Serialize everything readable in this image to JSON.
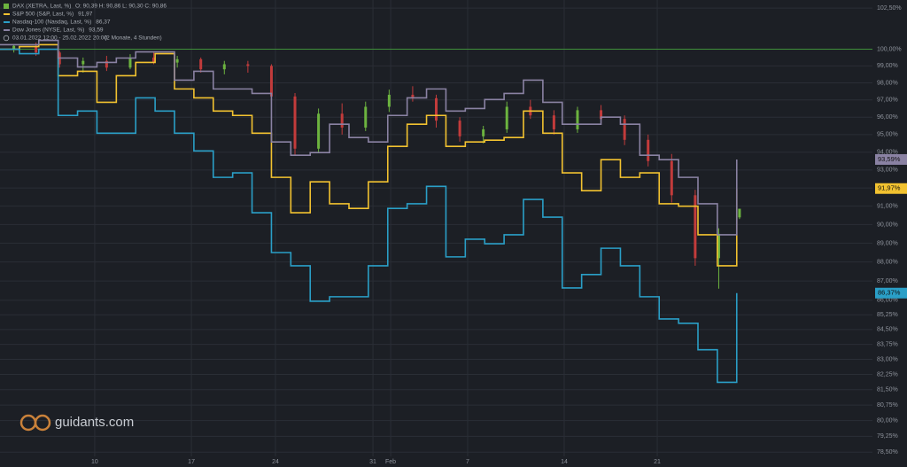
{
  "chart_data": {
    "type": "line",
    "y_scale": "log",
    "date_range": "03.01.2022 12:00 - 25.02.2022 20:00",
    "period": "(2 Monate, 4 Stunden)",
    "watermark": "guidants.com",
    "xlim": [
      0,
      63
    ],
    "xticks": [
      {
        "value": 6.84,
        "label": "10"
      },
      {
        "value": 13.82,
        "label": "17"
      },
      {
        "value": 19.89,
        "label": "24"
      },
      {
        "value": 26.93,
        "label": "31"
      },
      {
        "value": 28.21,
        "label": "Feb"
      },
      {
        "value": 33.77,
        "label": "7"
      },
      {
        "value": 40.74,
        "label": "14"
      },
      {
        "value": 47.46,
        "label": "21"
      }
    ],
    "ylim": [
      78.3,
      103.0
    ],
    "yticks": [
      {
        "value": 102.5,
        "label": "102,50%"
      },
      {
        "value": 100,
        "label": "100,00%"
      },
      {
        "value": 99,
        "label": "99,00%"
      },
      {
        "value": 98,
        "label": "98,00%"
      },
      {
        "value": 97,
        "label": "97,00%"
      },
      {
        "value": 96,
        "label": "96,00%"
      },
      {
        "value": 95,
        "label": "95,00%"
      },
      {
        "value": 94,
        "label": "94,00%"
      },
      {
        "value": 93,
        "label": "93,00%"
      },
      {
        "value": 92,
        "label": "92,00%"
      },
      {
        "value": 91,
        "label": "91,00%"
      },
      {
        "value": 90,
        "label": "90,00%"
      },
      {
        "value": 89,
        "label": "89,00%"
      },
      {
        "value": 88,
        "label": "88,00%"
      },
      {
        "value": 87,
        "label": "87,00%"
      },
      {
        "value": 86,
        "label": "86,00%"
      },
      {
        "value": 85.25,
        "label": "85,25%"
      },
      {
        "value": 84.5,
        "label": "84,50%"
      },
      {
        "value": 83.75,
        "label": "83,75%"
      },
      {
        "value": 83,
        "label": "83,00%"
      },
      {
        "value": 82.25,
        "label": "82,25%"
      },
      {
        "value": 81.5,
        "label": "81,50%"
      },
      {
        "value": 80.75,
        "label": "80,75%"
      },
      {
        "value": 80,
        "label": "80,00%"
      },
      {
        "value": 79.25,
        "label": "79,25%"
      },
      {
        "value": 78.5,
        "label": "78,50%"
      }
    ],
    "grid": true,
    "reference_line": {
      "value": 100,
      "color": "#3f8f3a"
    },
    "candles": {
      "name": "DAX (XETRA, Last, %)",
      "ohlc_label": "O: 90,39  H: 90,86  L: 90,30  C: 90,86",
      "up_color": "#6cb33f",
      "down_color": "#c23b3b",
      "x": [
        1.0,
        2.6,
        4.3,
        6.0,
        7.7,
        9.4,
        11.1,
        12.8,
        14.5,
        16.2,
        17.9,
        19.6,
        21.3,
        23.0,
        24.7,
        26.4,
        28.1,
        29.8,
        31.5,
        33.2,
        34.9,
        36.6,
        38.3,
        40.0,
        41.7,
        43.4,
        45.1,
        46.8,
        48.5,
        50.2,
        51.9,
        53.4
      ],
      "open": [
        100.0,
        100.2,
        99.8,
        99.1,
        99.3,
        98.9,
        99.5,
        99.2,
        99.4,
        98.8,
        99.1,
        99.0,
        97.2,
        94.2,
        96.2,
        95.4,
        96.6,
        97.3,
        97.1,
        95.8,
        94.9,
        95.3,
        96.6,
        96.1,
        95.3,
        96.4,
        95.9,
        94.7,
        93.5,
        91.6,
        88.2,
        90.39
      ],
      "high": [
        100.3,
        100.4,
        99.9,
        99.5,
        99.6,
        99.7,
        99.8,
        99.6,
        99.5,
        99.3,
        99.3,
        99.1,
        97.4,
        96.5,
        96.8,
        96.9,
        97.6,
        97.8,
        97.3,
        96.0,
        95.5,
        96.9,
        97.0,
        96.4,
        96.6,
        96.7,
        96.1,
        95.0,
        93.9,
        91.9,
        89.8,
        90.86
      ],
      "low": [
        99.8,
        99.6,
        98.9,
        98.6,
        98.7,
        98.8,
        99.1,
        98.9,
        98.6,
        98.5,
        98.6,
        96.8,
        93.8,
        94.0,
        95.0,
        95.2,
        96.3,
        96.9,
        95.4,
        94.6,
        94.5,
        95.1,
        95.9,
        95.0,
        95.1,
        95.6,
        94.4,
        93.2,
        91.2,
        87.8,
        86.6,
        90.3
      ],
      "close": [
        100.2,
        99.8,
        99.1,
        99.3,
        98.9,
        99.5,
        99.2,
        99.4,
        98.8,
        99.1,
        99.0,
        97.2,
        94.2,
        96.2,
        95.4,
        96.6,
        97.3,
        97.1,
        95.8,
        94.9,
        95.3,
        96.6,
        96.1,
        95.3,
        96.4,
        95.9,
        94.7,
        93.5,
        91.6,
        88.2,
        89.5,
        90.86
      ]
    },
    "x": [
      0,
      1.4,
      2.8,
      4.2,
      5.6,
      7.0,
      8.4,
      9.8,
      11.2,
      12.6,
      14.0,
      15.4,
      16.8,
      18.2,
      19.6,
      21.0,
      22.4,
      23.8,
      25.2,
      26.6,
      28.0,
      29.4,
      30.8,
      32.2,
      33.6,
      35.0,
      36.4,
      37.8,
      39.2,
      40.6,
      42.0,
      43.4,
      44.8,
      46.2,
      47.6,
      49.0,
      50.4,
      51.8,
      53.2
    ],
    "series": [
      {
        "name": "S&P 500 (S&P, Last, %)",
        "legend_value": "91,97",
        "last_label": "91,97%",
        "color": "#f2c230",
        "values": [
          100.0,
          100.16,
          100.27,
          98.42,
          98.68,
          96.86,
          98.42,
          99.21,
          99.73,
          97.64,
          97.12,
          96.35,
          96.1,
          95.08,
          92.59,
          90.64,
          92.34,
          91.13,
          90.88,
          92.34,
          94.33,
          95.59,
          96.1,
          94.33,
          94.58,
          94.68,
          94.83,
          96.35,
          95.08,
          92.84,
          91.85,
          93.58,
          92.59,
          92.84,
          91.13,
          91.0,
          89.45,
          87.8,
          91.97
        ]
      },
      {
        "name": "Nasdaq-100 (Nasdaq, Last, %)",
        "legend_value": "86,37",
        "last_label": "86,37%",
        "color": "#2a9fc7",
        "values": [
          100.0,
          99.73,
          100.0,
          96.1,
          96.35,
          95.08,
          95.08,
          97.12,
          96.35,
          95.08,
          94.07,
          92.59,
          92.84,
          90.64,
          88.5,
          87.8,
          85.95,
          86.18,
          86.18,
          87.8,
          90.88,
          91.13,
          92.09,
          88.27,
          89.21,
          88.97,
          89.45,
          91.37,
          90.4,
          86.64,
          87.34,
          88.73,
          87.8,
          86.18,
          85.04,
          84.82,
          83.48,
          81.86,
          86.37
        ]
      },
      {
        "name": "Dow Jones (NYSE, Last, %)",
        "legend_value": "93,59",
        "last_label": "93,59%",
        "color": "#8a82a3",
        "values": [
          100.27,
          100.27,
          100.53,
          99.47,
          98.94,
          99.21,
          99.47,
          99.84,
          99.84,
          98.16,
          98.68,
          97.64,
          97.64,
          97.38,
          94.58,
          93.83,
          93.98,
          95.59,
          94.83,
          94.58,
          96.1,
          97.12,
          97.64,
          96.35,
          96.5,
          97.02,
          97.38,
          98.16,
          96.86,
          95.59,
          95.59,
          96.0,
          95.59,
          93.83,
          93.58,
          92.59,
          91.13,
          89.45,
          93.59
        ]
      }
    ]
  }
}
